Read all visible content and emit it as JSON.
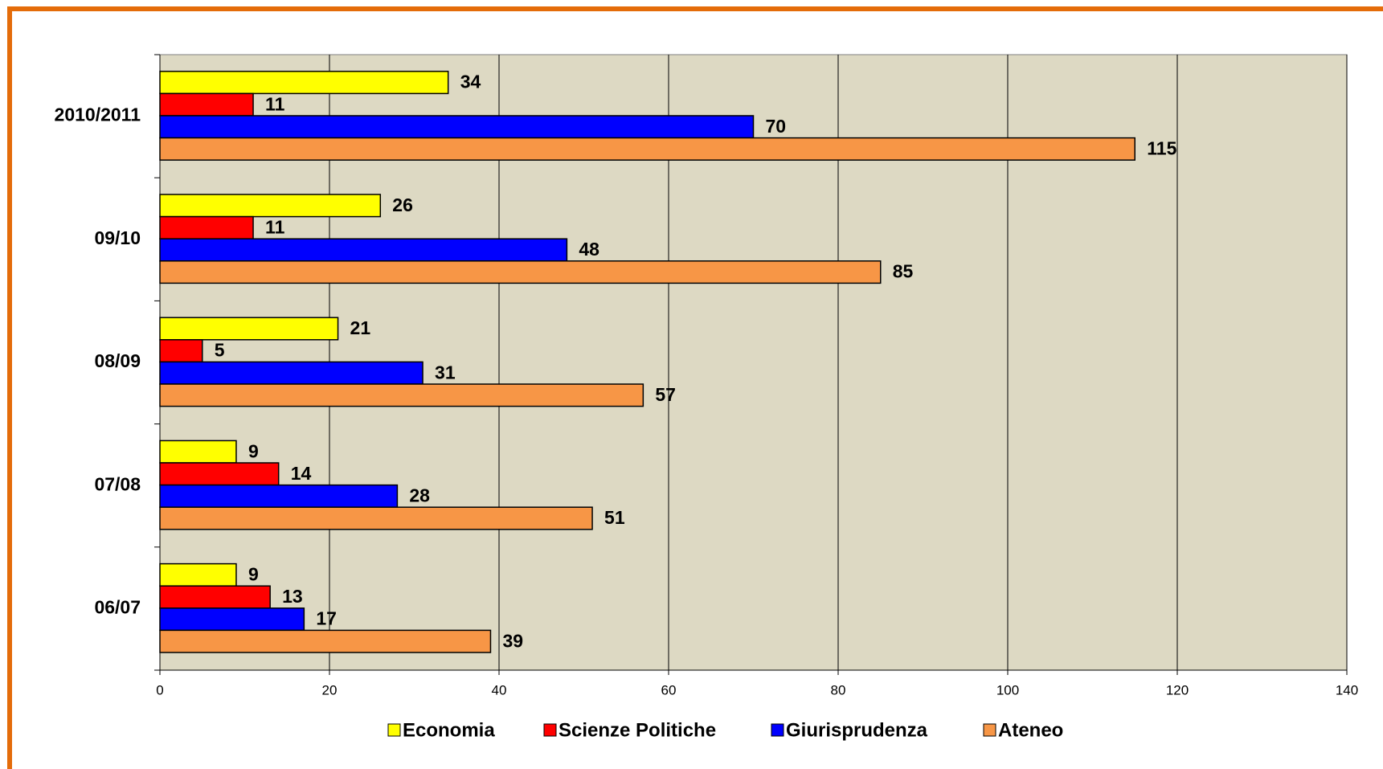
{
  "chart_data": {
    "type": "hbar",
    "categories": [
      "06/07",
      "07/08",
      "08/09",
      "09/10",
      "2010/2011"
    ],
    "series": [
      {
        "name": "Economia",
        "color": "#ffff00",
        "values": [
          9,
          9,
          21,
          26,
          34
        ]
      },
      {
        "name": "Scienze Politiche",
        "color": "#ff0000",
        "values": [
          13,
          14,
          5,
          11,
          11
        ]
      },
      {
        "name": "Giurisprudenza",
        "color": "#0000ff",
        "values": [
          17,
          28,
          31,
          48,
          70
        ]
      },
      {
        "name": "Ateneo",
        "color": "#f79646",
        "values": [
          39,
          51,
          57,
          85,
          115
        ]
      }
    ],
    "xlim": [
      0,
      140
    ],
    "xticks": [
      0,
      20,
      40,
      60,
      80,
      100,
      120,
      140
    ],
    "grid": true,
    "legend": "bottom",
    "plot_background": "#ddd9c3"
  }
}
